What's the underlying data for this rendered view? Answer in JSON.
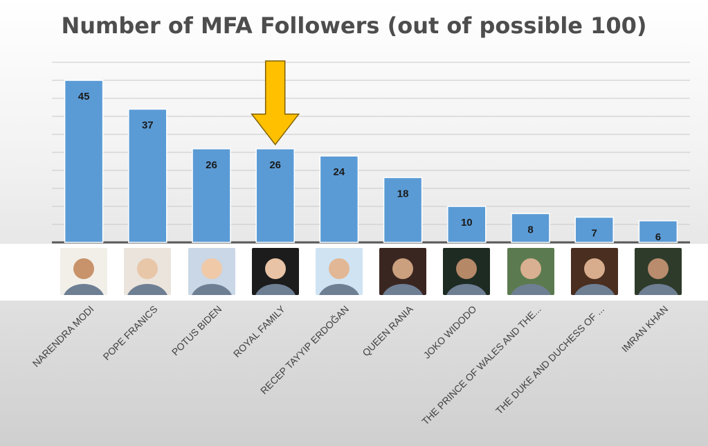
{
  "chart_data": {
    "type": "bar",
    "title": "Number of MFA Followers (out of possible 100)",
    "categories": [
      "NARENDRA MODI",
      "POPE FRANICS",
      "POTUS BIDEN",
      "ROYAL FAMILY",
      "RECEP TAYYIP ERDOĞAN",
      "QUEEN RANIA",
      "JOKO WIDODO",
      "THE PRINCE OF WALES AND THE...",
      "THE DUKE AND DUCHESS OF ...",
      "IMRAN KHAN"
    ],
    "values": [
      45,
      37,
      26,
      26,
      24,
      18,
      10,
      8,
      7,
      6
    ],
    "data_labels": [
      "45",
      "37",
      "26",
      "26",
      "24",
      "18",
      "10",
      "8",
      "7",
      "6"
    ],
    "ylim": [
      0,
      50
    ],
    "grid": true,
    "bar_color": "#5b9bd5",
    "highlight_arrow_on": "ROYAL FAMILY",
    "arrow_color": "#ffc000",
    "photo_icons": [
      "portrait-photo",
      "portrait-photo",
      "portrait-photo",
      "portrait-photo",
      "portrait-photo",
      "portrait-photo",
      "portrait-photo",
      "group-photo",
      "group-photo",
      "portrait-photo"
    ]
  }
}
